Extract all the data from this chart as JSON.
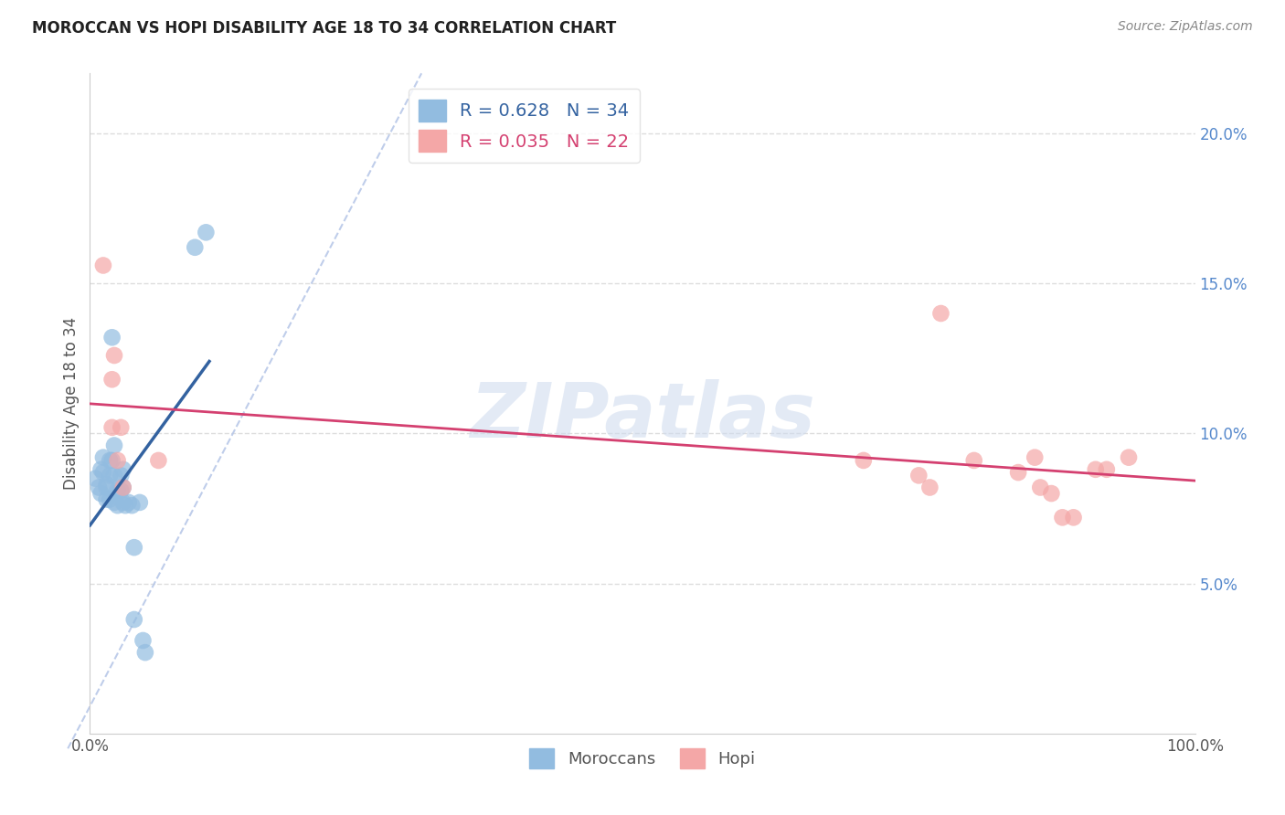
{
  "title": "MOROCCAN VS HOPI DISABILITY AGE 18 TO 34 CORRELATION CHART",
  "ylabel": "Disability Age 18 to 34",
  "source_text": "Source: ZipAtlas.com",
  "xlim": [
    0.0,
    1.0
  ],
  "ylim": [
    0.0,
    0.22
  ],
  "x_ticks": [
    0.0,
    0.25,
    0.5,
    0.75,
    1.0
  ],
  "x_tick_labels": [
    "0.0%",
    "",
    "",
    "",
    "100.0%"
  ],
  "y_ticks": [
    0.05,
    0.1,
    0.15,
    0.2
  ],
  "y_tick_labels": [
    "5.0%",
    "10.0%",
    "15.0%",
    "20.0%"
  ],
  "moroccan_R": 0.628,
  "moroccan_N": 34,
  "hopi_R": 0.035,
  "hopi_N": 22,
  "moroccan_color": "#92bce0",
  "hopi_color": "#f4a7a7",
  "moroccan_line_color": "#3362a0",
  "hopi_line_color": "#d44070",
  "ref_line_color": "#b8c8e8",
  "watermark_text": "ZIPatlas",
  "background_color": "#ffffff",
  "grid_color": "#dddddd",
  "moroccan_x": [
    0.005,
    0.008,
    0.01,
    0.01,
    0.012,
    0.012,
    0.015,
    0.015,
    0.015,
    0.018,
    0.018,
    0.018,
    0.02,
    0.02,
    0.022,
    0.022,
    0.022,
    0.025,
    0.025,
    0.028,
    0.028,
    0.03,
    0.03,
    0.03,
    0.032,
    0.035,
    0.038,
    0.04,
    0.04,
    0.045,
    0.048,
    0.05,
    0.095,
    0.105
  ],
  "moroccan_y": [
    0.085,
    0.082,
    0.088,
    0.08,
    0.092,
    0.087,
    0.083,
    0.078,
    0.082,
    0.091,
    0.086,
    0.078,
    0.132,
    0.091,
    0.096,
    0.086,
    0.077,
    0.081,
    0.076,
    0.086,
    0.081,
    0.088,
    0.082,
    0.077,
    0.076,
    0.077,
    0.076,
    0.062,
    0.038,
    0.077,
    0.031,
    0.027,
    0.162,
    0.167
  ],
  "hopi_x": [
    0.012,
    0.02,
    0.02,
    0.022,
    0.025,
    0.028,
    0.03,
    0.062,
    0.7,
    0.75,
    0.76,
    0.77,
    0.8,
    0.84,
    0.855,
    0.86,
    0.87,
    0.88,
    0.89,
    0.91,
    0.92,
    0.94
  ],
  "hopi_y": [
    0.156,
    0.102,
    0.118,
    0.126,
    0.091,
    0.102,
    0.082,
    0.091,
    0.091,
    0.086,
    0.082,
    0.14,
    0.091,
    0.087,
    0.092,
    0.082,
    0.08,
    0.072,
    0.072,
    0.088,
    0.088,
    0.092
  ]
}
